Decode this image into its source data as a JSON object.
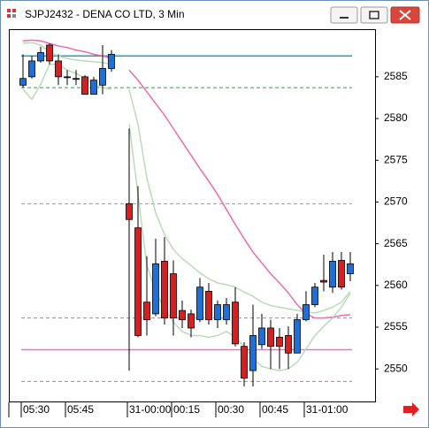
{
  "window": {
    "title": "SJPJ2432 - DENA CO LTD, 3 Min"
  },
  "chart_data": {
    "type": "candlestick",
    "categories": [
      "05:30",
      null,
      null,
      null,
      null,
      "05:45",
      null,
      null,
      null,
      null,
      null,
      null,
      "31-00:00",
      null,
      null,
      null,
      null,
      "00:15",
      null,
      null,
      null,
      null,
      "00:30",
      null,
      null,
      null,
      null,
      "00:45",
      null,
      null,
      null,
      null,
      "31-01:00",
      null,
      null,
      null,
      null,
      null
    ],
    "open": [
      2584.0,
      2585.0,
      2586.9,
      2588.8,
      2586.9,
      2585.0,
      2584.8,
      2585.0,
      2582.9,
      2584.0,
      2586.0,
      null,
      2569.8,
      2566.9,
      2558.0,
      2556.6,
      2562.9,
      2561.4,
      2557.0,
      2556.6,
      2555.9,
      2559.3,
      2555.9,
      2555.9,
      2558.0,
      2552.7,
      2549.8,
      2552.9,
      2554.9,
      2553.8,
      2554.0,
      2551.9,
      2555.9,
      2557.7,
      2560.6,
      2559.8,
      2563.0,
      2561.4
    ],
    "high": [
      2587.7,
      2587.5,
      2588.6,
      2589.0,
      2587.7,
      2585.8,
      2585.8,
      2585.2,
      2585.0,
      2588.8,
      2588.2,
      null,
      2578.8,
      2571.9,
      2563.5,
      2565.6,
      2565.8,
      2563.0,
      2558.2,
      2557.1,
      2560.9,
      2560.3,
      2558.2,
      2558.5,
      2559.8,
      2553.2,
      2557.7,
      2556.6,
      2555.9,
      2554.9,
      2555.1,
      2556.6,
      2559.3,
      2560.3,
      2563.7,
      2564.0,
      2564.0,
      2564.0
    ],
    "low": [
      2583.7,
      2584.8,
      2586.7,
      2586.5,
      2584.0,
      2584.0,
      2584.0,
      2582.9,
      2582.9,
      2582.9,
      2585.6,
      null,
      2549.8,
      2553.8,
      2554.0,
      2556.3,
      2555.3,
      2554.0,
      2554.9,
      2553.8,
      2555.6,
      2555.3,
      2554.9,
      2555.3,
      2552.7,
      2547.9,
      2547.9,
      2552.4,
      2550.0,
      2550.0,
      2550.0,
      2551.9,
      2555.7,
      2557.4,
      2559.3,
      2559.1,
      2559.5,
      2560.5
    ],
    "close": [
      2584.8,
      2586.9,
      2587.9,
      2586.9,
      2585.0,
      2585.0,
      2584.8,
      2582.9,
      2584.6,
      2586.0,
      2587.7,
      null,
      2567.9,
      2554.0,
      2555.9,
      2562.6,
      2556.1,
      2556.1,
      2555.9,
      2554.9,
      2559.8,
      2555.9,
      2557.7,
      2557.7,
      2553.0,
      2548.9,
      2554.0,
      2554.9,
      2552.7,
      2552.7,
      2551.9,
      2555.9,
      2557.7,
      2559.8,
      2560.4,
      2562.9,
      2559.8,
      2562.6
    ],
    "up_color": "#1f6fd8",
    "down_color": "#d42020",
    "ylim": [
      2546.1,
      2590.6
    ],
    "yticks": [
      2550,
      2555,
      2560,
      2565,
      2570,
      2575,
      2580,
      2585
    ],
    "levels": [
      {
        "value": 2587.5,
        "color": "#1aa6b0",
        "style": "solid"
      },
      {
        "value": 2583.7,
        "color": "#22a83a",
        "style": "dashed"
      },
      {
        "value": 2569.8,
        "color": "#999999",
        "style": "dashed"
      },
      {
        "value": 2556.1,
        "color": "#e060c0",
        "style": "dashed"
      },
      {
        "value": 2552.3,
        "color": "#f070c8",
        "style": "solid"
      },
      {
        "value": 2548.5,
        "color": "#e060c0",
        "style": "dashed"
      }
    ],
    "lines": [
      {
        "color": "#f06aa8",
        "values": [
          2589.3,
          2589.4,
          2589.3,
          2589.0,
          2588.7,
          2588.5,
          2588.2,
          2588.0,
          2587.7,
          2587.5,
          2587.2,
          null,
          2585.8,
          2584.6,
          2583.2,
          2581.8,
          2580.4,
          2578.8,
          2577.2,
          2575.6,
          2574.0,
          2572.5,
          2570.9,
          2569.1,
          2567.3,
          2565.6,
          2564.0,
          2562.7,
          2561.4,
          2560.3,
          2559.1,
          2557.7,
          2556.6,
          2556.1,
          2556.1,
          2556.2,
          2556.4,
          2556.5
        ]
      },
      {
        "color": "#b8dcb8",
        "values": [
          2589.0,
          2589.1,
          2588.8,
          2588.0,
          2587.5,
          2587.2,
          2587.0,
          2586.9,
          2586.8,
          2586.7,
          2586.5,
          null,
          2583.5,
          2579.3,
          2572.9,
          2568.7,
          2566.1,
          2564.3,
          2563.2,
          2562.4,
          2561.5,
          2560.8,
          2560.3,
          2560.1,
          2559.8,
          2559.2,
          2558.7,
          2558.0,
          2557.6,
          2557.4,
          2557.2,
          2557.0,
          2556.8,
          2556.7,
          2557.0,
          2557.4,
          2558.0,
          2559.3
        ]
      },
      {
        "color": "#b8dcb8",
        "values": [
          2583.5,
          2582.3,
          2584.1,
          2586.5,
          2586.5,
          2585.8,
          2585.4,
          2584.8,
          2584.1,
          2583.7,
          2583.5,
          null,
          2579.3,
          2570.9,
          2562.4,
          2559.3,
          2557.2,
          2555.6,
          2554.5,
          2554.0,
          2554.0,
          2553.8,
          2554.0,
          2554.5,
          2553.8,
          2552.7,
          2551.3,
          2550.3,
          2550.0,
          2549.8,
          2550.0,
          2550.8,
          2552.4,
          2554.0,
          2555.1,
          2556.1,
          2557.4,
          2559.1
        ]
      }
    ]
  }
}
